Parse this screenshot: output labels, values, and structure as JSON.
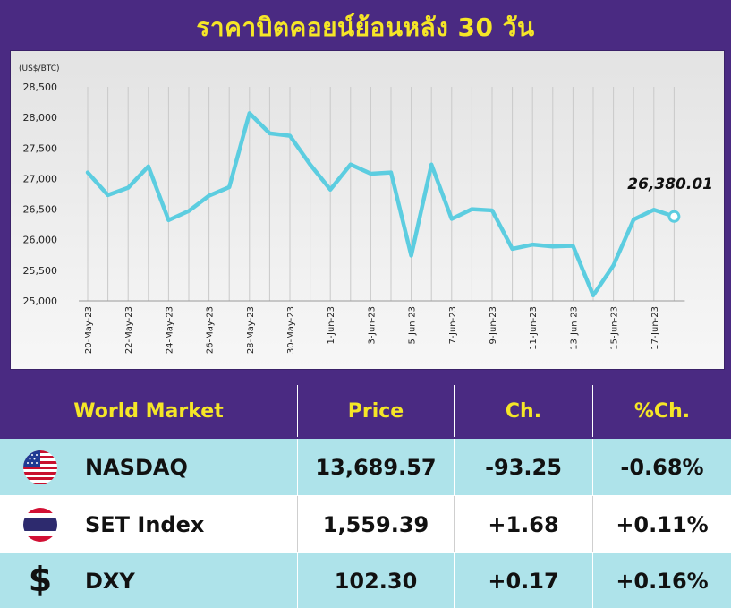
{
  "header": {
    "title": "ราคาบิตคอยน์ย้อนหลัง 30 วัน"
  },
  "chart_data": {
    "type": "line",
    "unit_label": "(US$/BTC)",
    "ylim": [
      25000,
      28500
    ],
    "yticks": [
      "28,500",
      "28,000",
      "27,500",
      "27,000",
      "26,500",
      "26,000",
      "25,500",
      "25,000"
    ],
    "x": [
      "20-May-23",
      "21-May-23",
      "22-May-23",
      "23-May-23",
      "24-May-23",
      "25-May-23",
      "26-May-23",
      "27-May-23",
      "28-May-23",
      "29-May-23",
      "30-May-23",
      "31-May-23",
      "1-Jun-23",
      "2-Jun-23",
      "3-Jun-23",
      "4-Jun-23",
      "5-Jun-23",
      "6-Jun-23",
      "7-Jun-23",
      "8-Jun-23",
      "9-Jun-23",
      "10-Jun-23",
      "11-Jun-23",
      "12-Jun-23",
      "13-Jun-23",
      "14-Jun-23",
      "15-Jun-23",
      "16-Jun-23",
      "17-Jun-23",
      "18-Jun-23"
    ],
    "xtick_labels": [
      "20-May-23",
      "22-May-23",
      "24-May-23",
      "26-May-23",
      "28-May-23",
      "30-May-23",
      "1-Jun-23",
      "3-Jun-23",
      "5-Jun-23",
      "7-Jun-23",
      "9-Jun-23",
      "11-Jun-23",
      "13-Jun-23",
      "15-Jun-23",
      "17-Jun-23"
    ],
    "series": [
      {
        "values": [
          27100,
          26730,
          26850,
          27200,
          26320,
          26470,
          26720,
          26860,
          28070,
          27740,
          27700,
          27230,
          26820,
          27230,
          27080,
          27100,
          25740,
          27230,
          26340,
          26500,
          26480,
          25850,
          25920,
          25890,
          25900,
          25090,
          25580,
          26330,
          26490,
          26380.01
        ]
      }
    ],
    "last_value_label": "26,380.01",
    "grid": "vertical",
    "line_color": "#5ccde0"
  },
  "table": {
    "headers": [
      "World Market",
      "Price",
      "Ch.",
      "%Ch."
    ],
    "rows": [
      {
        "icon": "us-flag-icon",
        "name": "NASDAQ",
        "price": "13,689.57",
        "change": "-93.25",
        "pct": "-0.68%"
      },
      {
        "icon": "thai-flag-icon",
        "name": "SET Index",
        "price": "1,559.39",
        "change": "+1.68",
        "pct": "+0.11%"
      },
      {
        "icon": "dollar-icon",
        "name": "DXY",
        "price": "102.30",
        "change": "+0.17",
        "pct": "+0.16%"
      }
    ]
  }
}
